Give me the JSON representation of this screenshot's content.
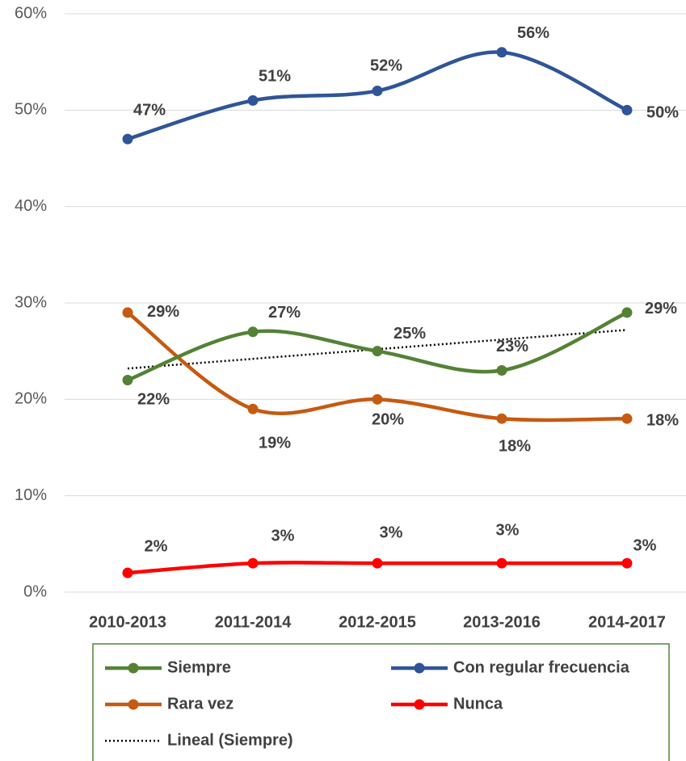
{
  "chart_data": {
    "type": "line",
    "categories": [
      "2010-2013",
      "2011-2014",
      "2012-2015",
      "2013-2016",
      "2014-2017"
    ],
    "series": [
      {
        "name": "Siempre",
        "color": "#548235",
        "values": [
          22,
          27,
          25,
          23,
          29
        ],
        "value_labels": [
          "22%",
          "27%",
          "25%",
          "23%",
          "29%"
        ]
      },
      {
        "name": "Con regular frecuencia",
        "color": "#2f5597",
        "values": [
          47,
          51,
          52,
          56,
          50
        ],
        "value_labels": [
          "47%",
          "51%",
          "52%",
          "56%",
          "50%"
        ]
      },
      {
        "name": "Rara vez",
        "color": "#c55a11",
        "values": [
          29,
          19,
          20,
          18,
          18
        ],
        "value_labels": [
          "29%",
          "19%",
          "20%",
          "18%",
          "18%"
        ]
      },
      {
        "name": "Nunca",
        "color": "#ff0000",
        "values": [
          2,
          3,
          3,
          3,
          3
        ],
        "value_labels": [
          "2%",
          "3%",
          "3%",
          "3%",
          "3%"
        ]
      },
      {
        "name": "Lineal (Siempre)",
        "color": "#000000",
        "dash": "dotted",
        "values": [
          23.2,
          24.2,
          25.2,
          26.2,
          27.2
        ]
      }
    ],
    "ylim": [
      0,
      60
    ],
    "yticks": [
      {
        "value": 0,
        "label": "0%"
      },
      {
        "value": 10,
        "label": "10%"
      },
      {
        "value": 20,
        "label": "20%"
      },
      {
        "value": 30,
        "label": "30%"
      },
      {
        "value": 40,
        "label": "40%"
      },
      {
        "value": 50,
        "label": "50%"
      },
      {
        "value": 60,
        "label": "60%"
      }
    ],
    "grid": true,
    "legend": "bottom"
  }
}
